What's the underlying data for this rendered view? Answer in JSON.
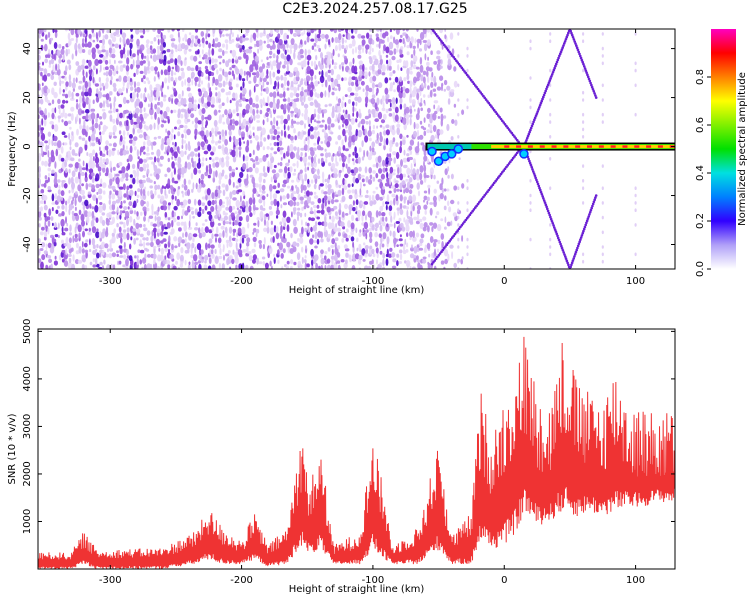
{
  "title": "C2E3.2024.257.08.17.G25",
  "chart_data": [
    {
      "type": "heatmap",
      "name": "spectrogram",
      "xlabel": "Height of straight line (km)",
      "ylabel": "Frequency (Hz)",
      "xlim": [
        -355,
        130
      ],
      "ylim": [
        -50,
        48
      ],
      "x_ticks": [
        -300,
        -200,
        -100,
        0,
        100
      ],
      "x_tick_labels": [
        "-300",
        "-200",
        "-100",
        "0",
        "100"
      ],
      "y_ticks": [
        -40,
        -20,
        0,
        20,
        40
      ],
      "y_tick_labels": [
        "-40",
        "-20",
        "0",
        "20",
        "40"
      ],
      "colorbar": {
        "label": "Normalized spectral amplitude",
        "range": [
          0,
          1
        ],
        "ticks": [
          0.0,
          0.2,
          0.4,
          0.6,
          0.8
        ],
        "tick_labels": [
          "0.0",
          "0.2",
          "0.4",
          "0.6",
          "0.8"
        ]
      },
      "features": {
        "dense_noise_region_x": [
          -355,
          -60
        ],
        "carrier_line_x": [
          -60,
          130
        ],
        "carrier_frequency": 0,
        "fan_lines": [
          {
            "x": [
              -55,
              15
            ],
            "y": [
              48,
              -1
            ]
          },
          {
            "x": [
              -55,
              15
            ],
            "y": [
              -48,
              1
            ]
          },
          {
            "x": [
              15,
              50
            ],
            "y": [
              0,
              48
            ]
          },
          {
            "x": [
              15,
              50
            ],
            "y": [
              0,
              -50
            ]
          },
          {
            "x": [
              50,
              70
            ],
            "y": [
              48,
              20
            ]
          },
          {
            "x": [
              50,
              70
            ],
            "y": [
              -50,
              -20
            ]
          }
        ]
      }
    },
    {
      "type": "line",
      "name": "snr",
      "xlabel": "Height of straight line (km)",
      "ylabel": "SNR (10 * v/v)",
      "xlim": [
        -355,
        130
      ],
      "ylim": [
        0,
        5050
      ],
      "x_ticks": [
        -300,
        -200,
        -100,
        0,
        100
      ],
      "x_tick_labels": [
        "-300",
        "-200",
        "-100",
        "0",
        "100"
      ],
      "y_ticks": [
        1000,
        2000,
        3000,
        4000,
        5000
      ],
      "y_tick_labels": [
        "1000",
        "2000",
        "3000",
        "4000",
        "5000"
      ],
      "color": "#ef3333",
      "envelope": [
        {
          "x": -355,
          "low": 0,
          "high": 350
        },
        {
          "x": -330,
          "low": 0,
          "high": 350
        },
        {
          "x": -320,
          "low": 100,
          "high": 800
        },
        {
          "x": -310,
          "low": 0,
          "high": 400
        },
        {
          "x": -260,
          "low": 0,
          "high": 450
        },
        {
          "x": -235,
          "low": 100,
          "high": 800
        },
        {
          "x": -225,
          "low": 200,
          "high": 1300
        },
        {
          "x": -215,
          "low": 100,
          "high": 900
        },
        {
          "x": -200,
          "low": 100,
          "high": 600
        },
        {
          "x": -190,
          "low": 200,
          "high": 1200
        },
        {
          "x": -180,
          "low": 50,
          "high": 500
        },
        {
          "x": -165,
          "low": 100,
          "high": 900
        },
        {
          "x": -155,
          "low": 500,
          "high": 2900
        },
        {
          "x": -148,
          "low": 300,
          "high": 1800
        },
        {
          "x": -140,
          "low": 400,
          "high": 2600
        },
        {
          "x": -130,
          "low": 100,
          "high": 500
        },
        {
          "x": -110,
          "low": 100,
          "high": 800
        },
        {
          "x": -100,
          "low": 400,
          "high": 2800
        },
        {
          "x": -92,
          "low": 200,
          "high": 1700
        },
        {
          "x": -85,
          "low": 100,
          "high": 500
        },
        {
          "x": -65,
          "low": 100,
          "high": 900
        },
        {
          "x": -50,
          "low": 400,
          "high": 2700
        },
        {
          "x": -40,
          "low": 100,
          "high": 700
        },
        {
          "x": -25,
          "low": 100,
          "high": 1200
        },
        {
          "x": -18,
          "low": 600,
          "high": 3800
        },
        {
          "x": -10,
          "low": 400,
          "high": 2800
        },
        {
          "x": 0,
          "low": 500,
          "high": 3600
        },
        {
          "x": 10,
          "low": 800,
          "high": 4300
        },
        {
          "x": 15,
          "low": 1200,
          "high": 5000
        },
        {
          "x": 25,
          "low": 900,
          "high": 3800
        },
        {
          "x": 35,
          "low": 1000,
          "high": 3500
        },
        {
          "x": 45,
          "low": 1200,
          "high": 5050
        },
        {
          "x": 55,
          "low": 1100,
          "high": 4000
        },
        {
          "x": 65,
          "low": 1200,
          "high": 3700
        },
        {
          "x": 75,
          "low": 1100,
          "high": 3600
        },
        {
          "x": 85,
          "low": 1200,
          "high": 4300
        },
        {
          "x": 95,
          "low": 1300,
          "high": 3500
        },
        {
          "x": 105,
          "low": 1300,
          "high": 3400
        },
        {
          "x": 115,
          "low": 1400,
          "high": 3300
        },
        {
          "x": 130,
          "low": 1400,
          "high": 3400
        }
      ]
    }
  ]
}
